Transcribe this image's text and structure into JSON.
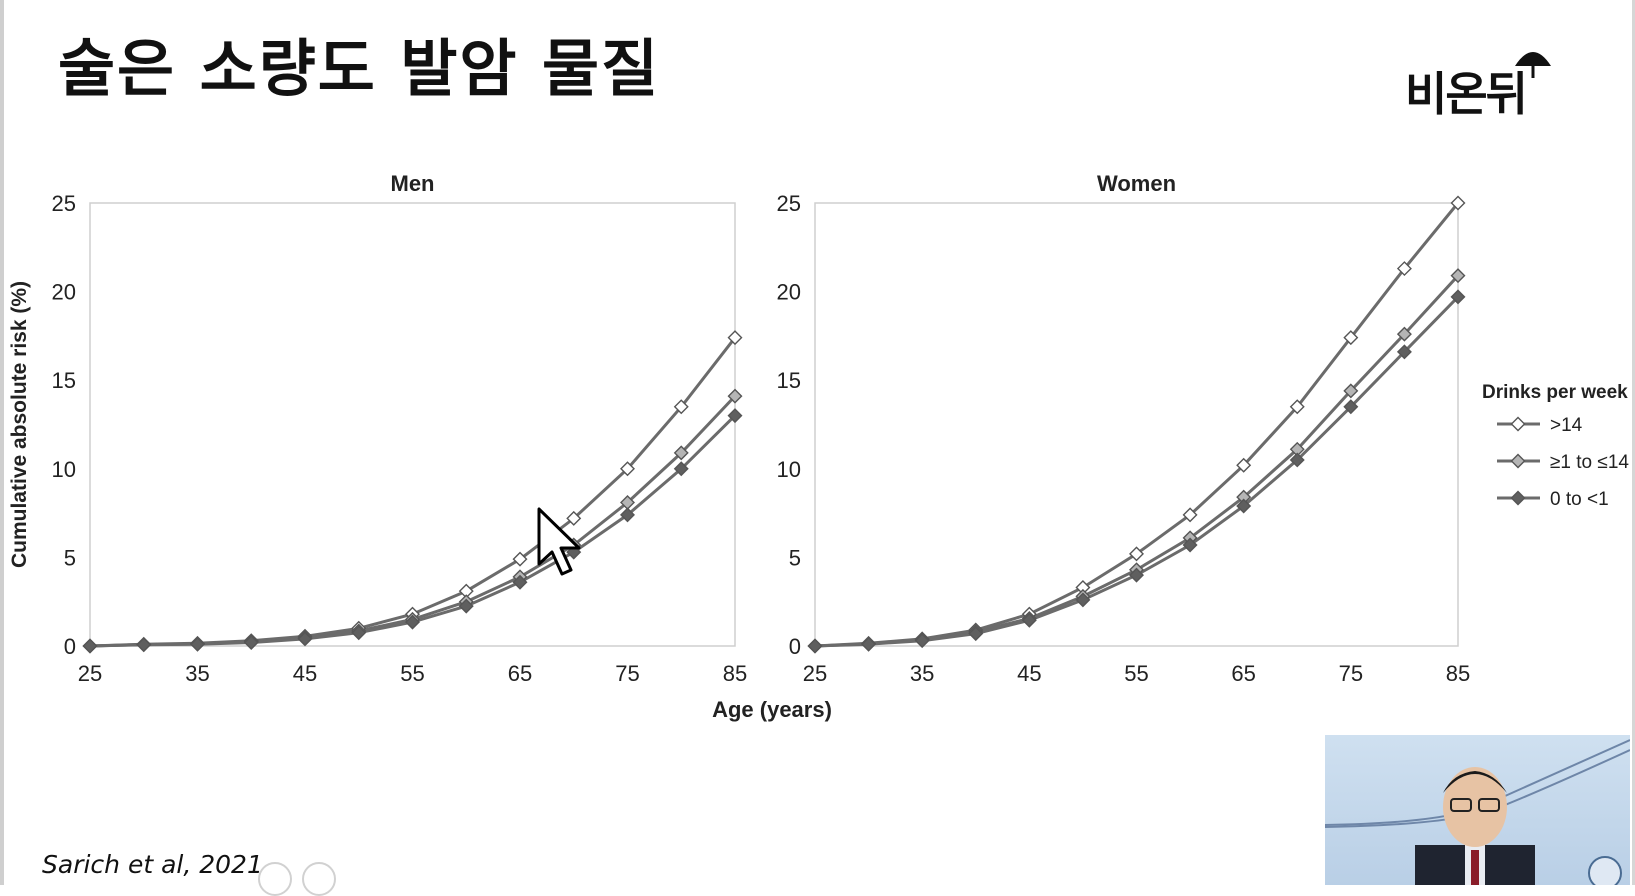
{
  "slide": {
    "title": "술은 소량도 발암 물질",
    "logo_text": "비온뒤",
    "citation": "Sarich et al, 2021"
  },
  "colors": {
    "line": "#6b6b6b",
    "marker_over14_fill": "#ffffff",
    "marker_1to14_fill": "#b5b5b5",
    "marker_0to1_fill": "#5f5f5f",
    "axis": "#cfcfcf",
    "text": "#222222"
  },
  "chart_data": [
    {
      "type": "line",
      "title": "Men",
      "xlabel": "Age (years)",
      "ylabel": "Cumulative absolute risk (%)",
      "x": [
        25,
        30,
        35,
        40,
        45,
        50,
        55,
        60,
        65,
        70,
        75,
        80,
        85
      ],
      "xticks": [
        25,
        35,
        45,
        55,
        65,
        75,
        85
      ],
      "yticks": [
        0,
        5,
        10,
        15,
        20,
        25
      ],
      "xlim": [
        25,
        85
      ],
      "ylim": [
        0,
        25
      ],
      "series": [
        {
          "name": ">14",
          "marker": "open-diamond",
          "values": [
            0,
            0.1,
            0.15,
            0.3,
            0.55,
            1.0,
            1.8,
            3.1,
            4.9,
            7.2,
            10.0,
            13.5,
            17.4
          ]
        },
        {
          "name": "≥1 to ≤14",
          "marker": "gray-diamond",
          "values": [
            0,
            0.08,
            0.12,
            0.25,
            0.45,
            0.85,
            1.5,
            2.5,
            3.9,
            5.7,
            8.1,
            10.9,
            14.1
          ]
        },
        {
          "name": "0 to <1",
          "marker": "dark-diamond",
          "values": [
            0,
            0.07,
            0.1,
            0.2,
            0.4,
            0.75,
            1.35,
            2.25,
            3.6,
            5.3,
            7.4,
            10.0,
            13.0
          ]
        }
      ]
    },
    {
      "type": "line",
      "title": "Women",
      "xlabel": "Age (years)",
      "ylabel": "",
      "x": [
        25,
        30,
        35,
        40,
        45,
        50,
        55,
        60,
        65,
        70,
        75,
        80,
        85
      ],
      "xticks": [
        25,
        35,
        45,
        55,
        65,
        75,
        85
      ],
      "yticks": [
        0,
        5,
        10,
        15,
        20,
        25
      ],
      "xlim": [
        25,
        85
      ],
      "ylim": [
        0,
        25
      ],
      "legend_title": "Drinks per week",
      "legend_position": "right",
      "series": [
        {
          "name": ">14",
          "marker": "open-diamond",
          "values": [
            0,
            0.15,
            0.4,
            0.9,
            1.8,
            3.3,
            5.2,
            7.4,
            10.2,
            13.5,
            17.4,
            21.3,
            25.0
          ]
        },
        {
          "name": "≥1 to ≤14",
          "marker": "gray-diamond",
          "values": [
            0,
            0.12,
            0.35,
            0.8,
            1.55,
            2.8,
            4.3,
            6.1,
            8.4,
            11.1,
            14.4,
            17.6,
            20.9
          ]
        },
        {
          "name": "0 to <1",
          "marker": "dark-diamond",
          "values": [
            0,
            0.1,
            0.3,
            0.7,
            1.45,
            2.6,
            4.0,
            5.7,
            7.9,
            10.5,
            13.5,
            16.6,
            19.7
          ]
        }
      ]
    }
  ]
}
